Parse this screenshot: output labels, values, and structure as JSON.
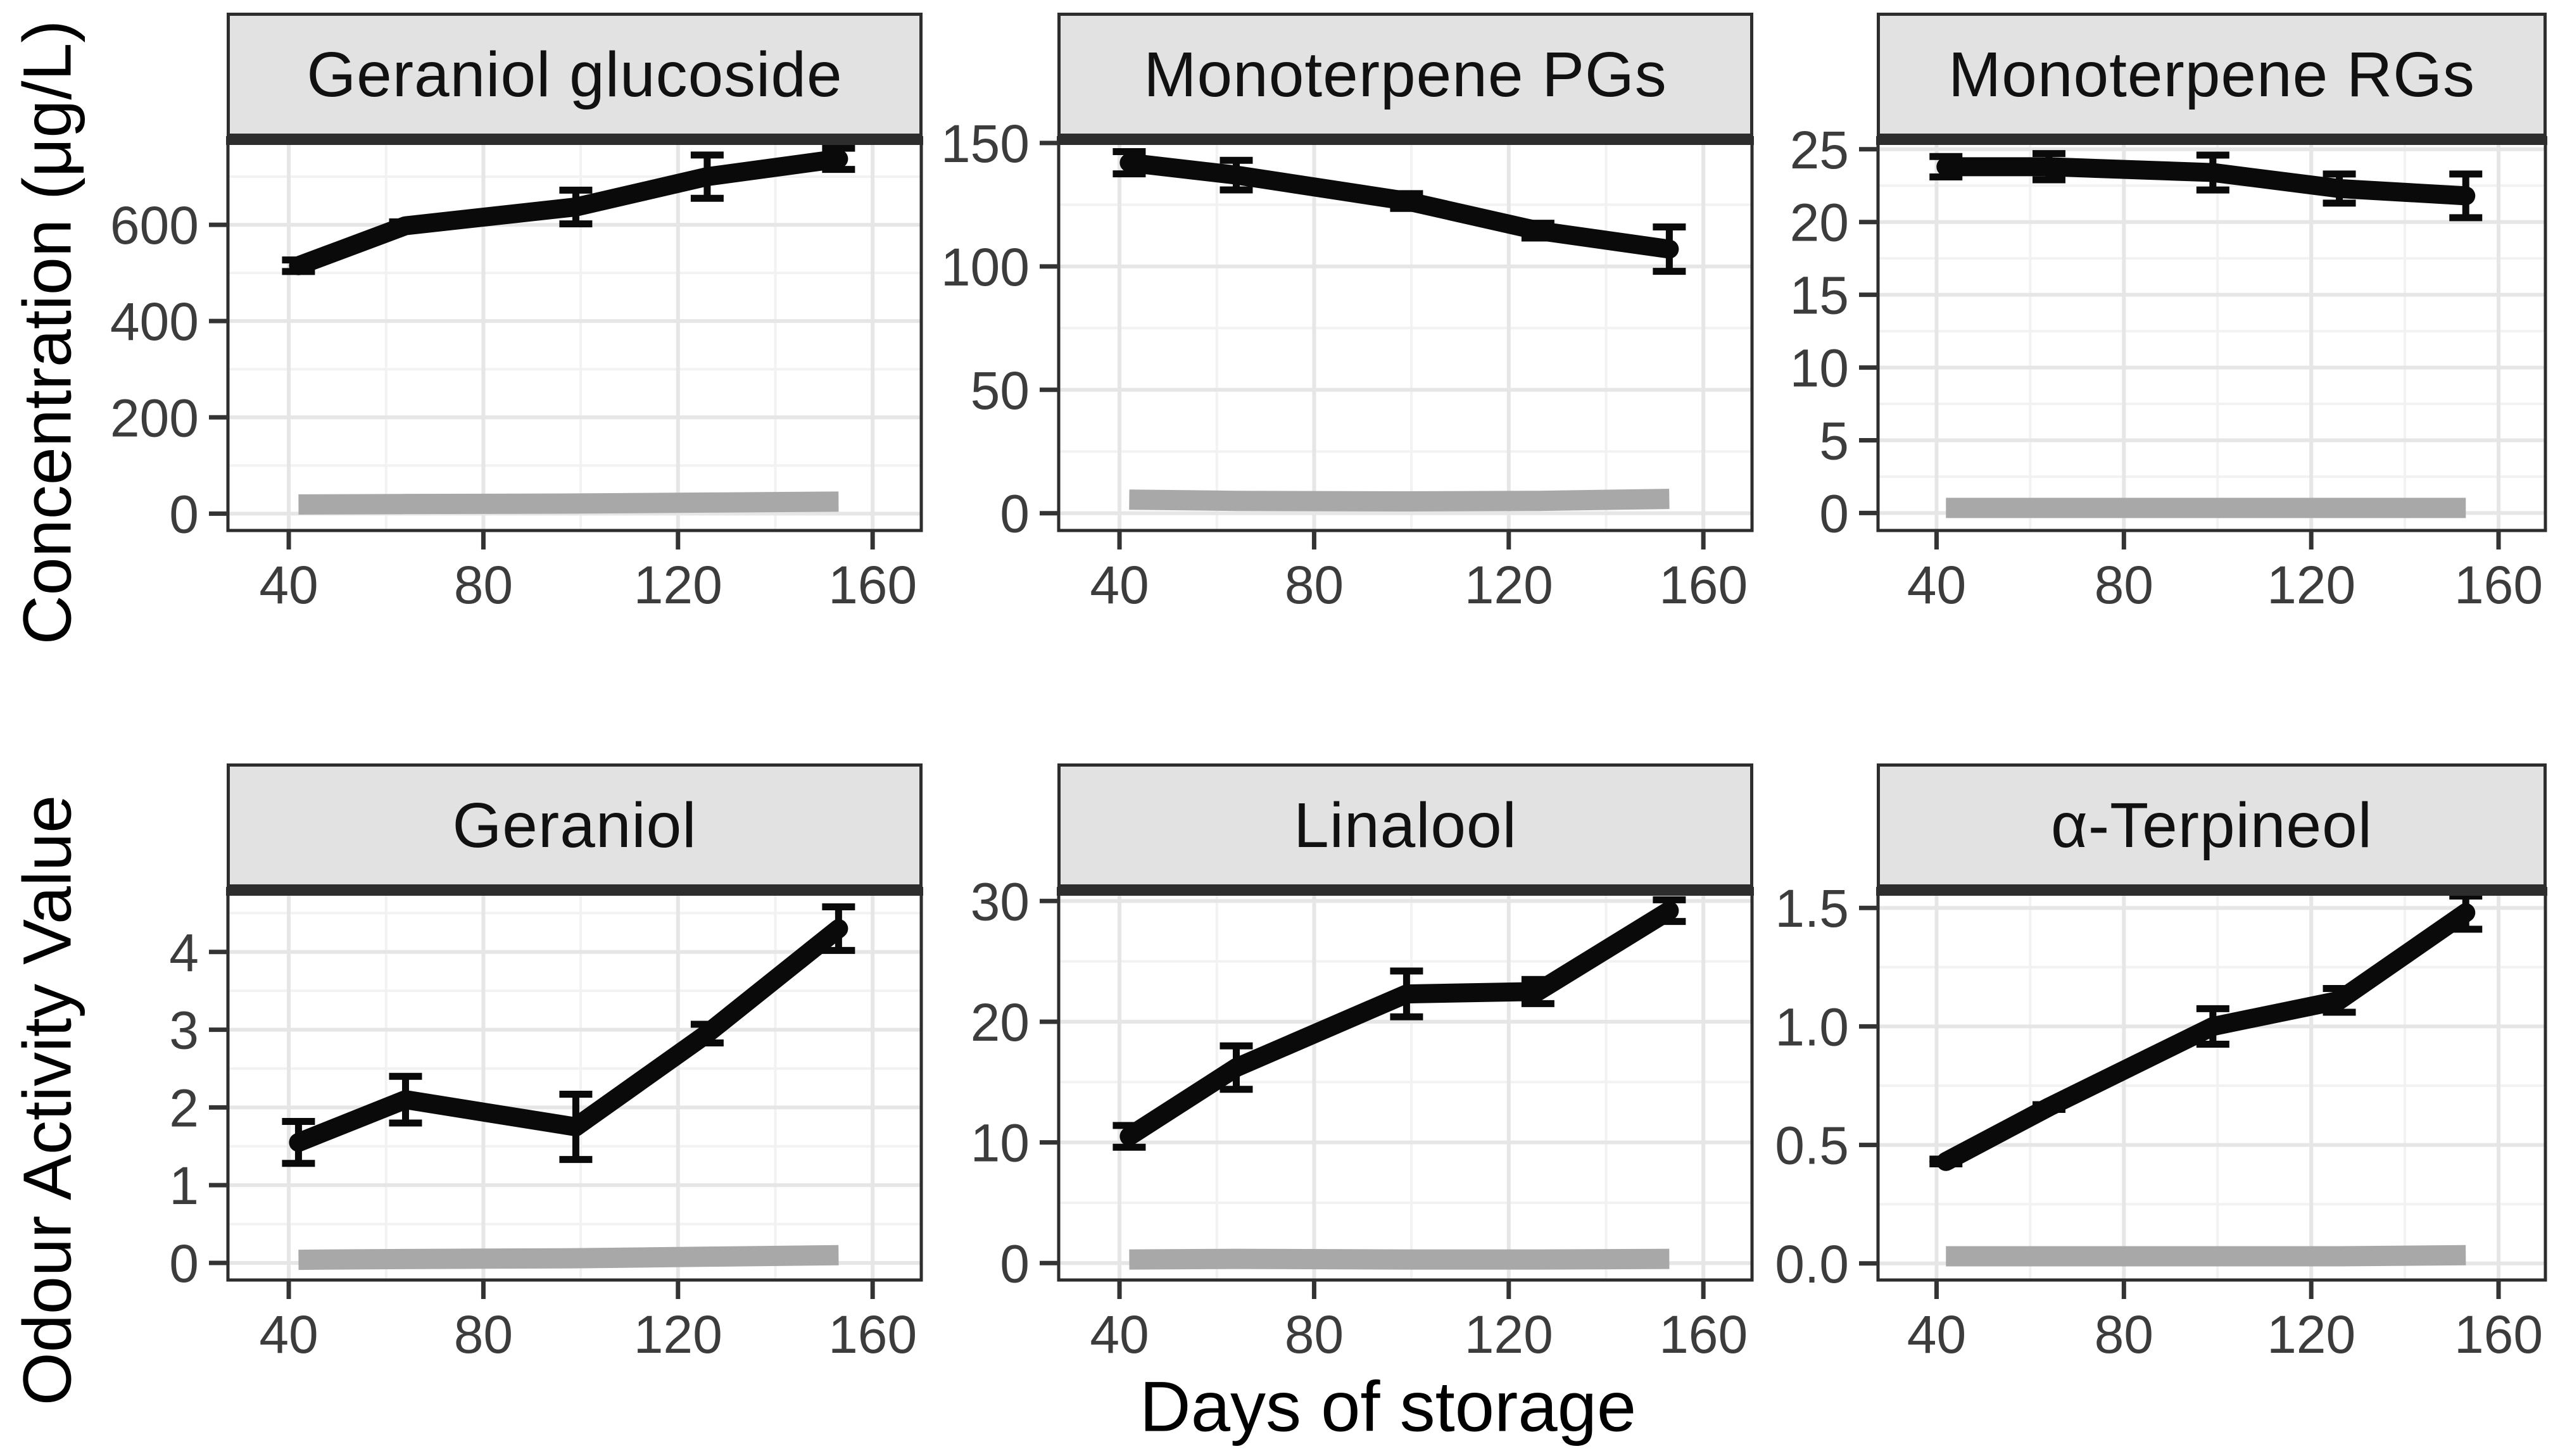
{
  "figure": {
    "x_label": "Days of storage",
    "y_label_row1": "Concentration (μg/L)",
    "y_label_row2": "Odour Activity Value",
    "x": [
      42,
      64,
      99,
      126,
      153
    ],
    "x_ticks": [
      40,
      80,
      120,
      160
    ],
    "x_tick_labels": [
      "40",
      "80",
      "120",
      "160"
    ],
    "x_domain": [
      27.5,
      170
    ],
    "colors": {
      "black_series": "#0a0a0a",
      "gray_series": "#a8a8a8",
      "grid_major": "#e6e6e6",
      "grid_minor": "#f2f2f2",
      "panel_border": "#2d2d2d",
      "strip_bg": "#e2e2e2",
      "tick_text": "#3c3c3c"
    }
  },
  "chart_data": [
    {
      "type": "line",
      "title": "Geraniol glucoside",
      "row_axis": "Concentration (μg/L)",
      "y_ticks": [
        0,
        200,
        400,
        600
      ],
      "y_tick_labels": [
        "0",
        "200",
        "400",
        "600"
      ],
      "y_domain": [
        -35,
        775
      ],
      "series": [
        {
          "name": "gray_line",
          "color": "#a8a8a8",
          "values": [
            19,
            20,
            21,
            23,
            25
          ]
        },
        {
          "name": "black_line",
          "color": "#0a0a0a",
          "values": [
            515,
            598,
            637,
            700,
            737
          ],
          "errors": [
            12,
            8,
            35,
            45,
            22
          ]
        }
      ]
    },
    {
      "type": "line",
      "title": "Monoterpene PGs",
      "row_axis": "Concentration (μg/L)",
      "y_ticks": [
        0,
        50,
        100,
        150
      ],
      "y_tick_labels": [
        "0",
        "50",
        "100",
        "150"
      ],
      "y_domain": [
        -7,
        151
      ],
      "series": [
        {
          "name": "gray_line",
          "color": "#a8a8a8",
          "values": [
            5.5,
            5,
            4.8,
            5,
            5.8
          ]
        },
        {
          "name": "black_line",
          "color": "#0a0a0a",
          "values": [
            142,
            137,
            126.5,
            114.5,
            107
          ],
          "errors": [
            4.5,
            6,
            3,
            3,
            9
          ]
        }
      ]
    },
    {
      "type": "line",
      "title": "Monoterpene RGs",
      "row_axis": "Concentration (μg/L)",
      "y_ticks": [
        0,
        5,
        10,
        15,
        20,
        25
      ],
      "y_tick_labels": [
        "0",
        "5",
        "10",
        "15",
        "20",
        "25"
      ],
      "y_domain": [
        -1.2,
        25.6
      ],
      "series": [
        {
          "name": "gray_line",
          "color": "#a8a8a8",
          "values": [
            0.35,
            0.35,
            0.35,
            0.35,
            0.35
          ]
        },
        {
          "name": "black_line",
          "color": "#0a0a0a",
          "values": [
            23.8,
            23.8,
            23.4,
            22.3,
            21.8
          ],
          "errors": [
            0.7,
            0.9,
            1.2,
            1.0,
            1.5
          ]
        }
      ]
    },
    {
      "type": "line",
      "title": "Geraniol",
      "row_axis": "Odour Activity Value",
      "y_ticks": [
        0,
        1,
        2,
        3,
        4
      ],
      "y_tick_labels": [
        "0",
        "1",
        "2",
        "3",
        "4"
      ],
      "y_domain": [
        -0.22,
        4.78
      ],
      "series": [
        {
          "name": "gray_line",
          "color": "#a8a8a8",
          "values": [
            0.04,
            0.05,
            0.06,
            0.08,
            0.1
          ]
        },
        {
          "name": "black_line",
          "color": "#0a0a0a",
          "values": [
            1.55,
            2.1,
            1.75,
            2.95,
            4.3
          ],
          "errors": [
            0.27,
            0.3,
            0.42,
            0.12,
            0.28
          ]
        }
      ]
    },
    {
      "type": "line",
      "title": "Linalool",
      "row_axis": "Odour Activity Value",
      "y_ticks": [
        0,
        10,
        20,
        30
      ],
      "y_tick_labels": [
        "0",
        "10",
        "20",
        "30"
      ],
      "y_domain": [
        -1.4,
        30.8
      ],
      "series": [
        {
          "name": "gray_line",
          "color": "#a8a8a8",
          "values": [
            0.3,
            0.35,
            0.3,
            0.3,
            0.35
          ]
        },
        {
          "name": "black_line",
          "color": "#0a0a0a",
          "values": [
            10.5,
            16.2,
            22.3,
            22.5,
            29.2
          ],
          "errors": [
            0.9,
            1.8,
            1.9,
            1.0,
            0.9
          ]
        }
      ]
    },
    {
      "type": "line",
      "title": "α-Terpineol",
      "row_axis": "Odour Activity Value",
      "y_ticks": [
        0,
        0.5,
        1.0,
        1.5
      ],
      "y_tick_labels": [
        "0.0",
        "0.5",
        "1.0",
        "1.5"
      ],
      "y_domain": [
        -0.07,
        1.57
      ],
      "series": [
        {
          "name": "gray_line",
          "color": "#a8a8a8",
          "values": [
            0.03,
            0.03,
            0.03,
            0.03,
            0.035
          ]
        },
        {
          "name": "black_line",
          "color": "#0a0a0a",
          "values": [
            0.43,
            0.66,
            1.0,
            1.11,
            1.48
          ],
          "errors": [
            0.01,
            0.01,
            0.075,
            0.05,
            0.07
          ]
        }
      ]
    }
  ]
}
